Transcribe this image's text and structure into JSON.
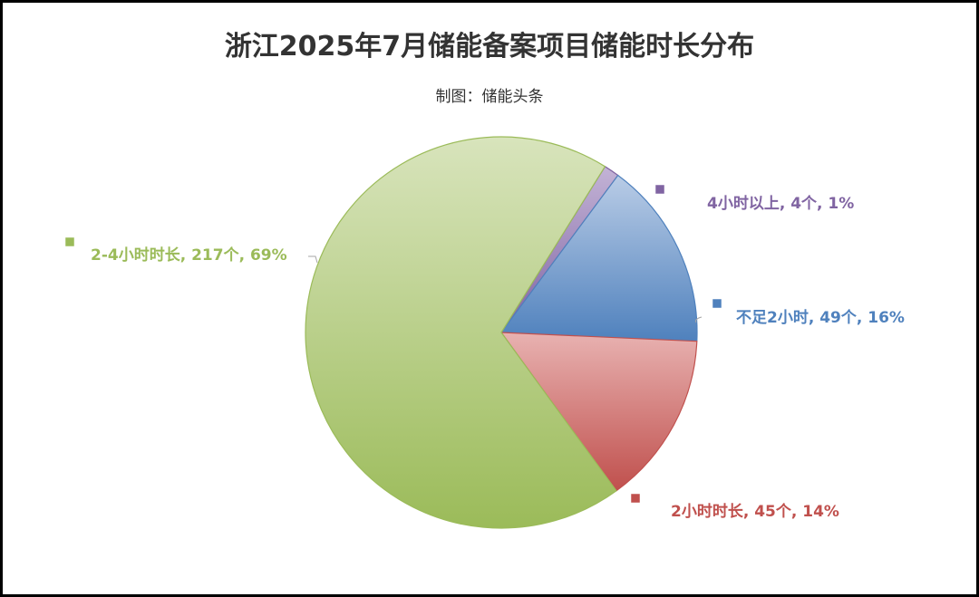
{
  "chart_data": {
    "type": "pie",
    "title": "浙江2025年7月储能备案项目储能时长分布",
    "subtitle": "制图：储能头条",
    "slices": [
      {
        "name": "4小时以上",
        "value": 4,
        "label": "4小时以上, 4个, 1%",
        "color": "#8064A2"
      },
      {
        "name": "不足2小时",
        "value": 49,
        "label": "不足2小时, 49个, 16%",
        "color": "#4F81BD"
      },
      {
        "name": "2小时时长",
        "value": 45,
        "label": "2小时时长, 45个, 14%",
        "color": "#C0504D"
      },
      {
        "name": "2-4小时时长",
        "value": 217,
        "label": "2-4小时时长, 217个, 69%",
        "color": "#9BBB59"
      }
    ],
    "legend": "none",
    "labels_position": "outside"
  }
}
